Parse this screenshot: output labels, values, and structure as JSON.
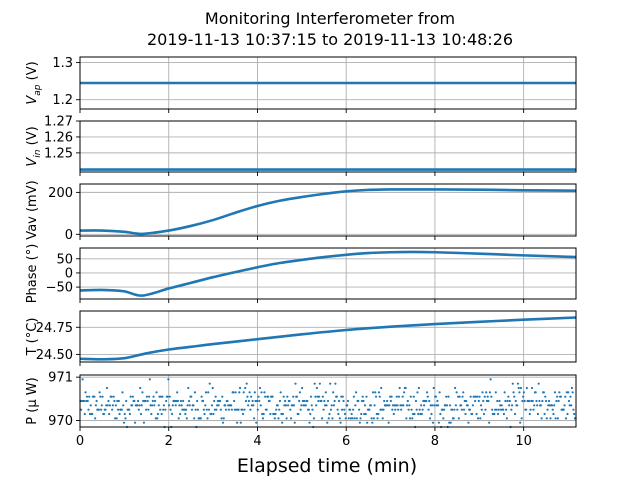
{
  "title_line1": "Monitoring Interferometer from",
  "title_line2": "2019-11-13 10:37:15 to 2019-11-13 10:48:26",
  "xlabel": "Elapsed time (min)",
  "colors": {
    "series": "#1f77b4",
    "grid": "#b0b0b0"
  },
  "chart_data": [
    {
      "type": "line",
      "ylabel": "V_ap (V)",
      "ylabel_main": "V",
      "ylabel_sub": "ap",
      "ylabel_unit": " (V)",
      "ylim": [
        1.175,
        1.315
      ],
      "yticks": [
        1.2,
        1.3
      ],
      "ytick_labels": [
        "1.2",
        "1.3"
      ],
      "xlim": [
        0,
        11.18
      ],
      "xticks": [
        0,
        2,
        4,
        6,
        8,
        10
      ],
      "grid": true,
      "x": [
        0,
        11.18
      ],
      "y": [
        1.245,
        1.245
      ]
    },
    {
      "type": "line",
      "ylabel": "V_in (V)",
      "ylabel_main": "V",
      "ylabel_sub": "in",
      "ylabel_unit": " (V)",
      "ylim": [
        1.238,
        1.27
      ],
      "yticks": [
        1.25,
        1.26,
        1.27
      ],
      "ytick_labels": [
        "1.25",
        "1.26",
        "1.27"
      ],
      "xlim": [
        0,
        11.18
      ],
      "xticks": [
        0,
        2,
        4,
        6,
        8,
        10
      ],
      "grid": true,
      "x": [
        0,
        11.18
      ],
      "y": [
        1.2395,
        1.2395
      ]
    },
    {
      "type": "line",
      "ylabel": "Vav (mV)",
      "ylim": [
        -8,
        240
      ],
      "yticks": [
        0,
        200
      ],
      "ytick_labels": [
        "0",
        "200"
      ],
      "xlim": [
        0,
        11.18
      ],
      "xticks": [
        0,
        2,
        4,
        6,
        8,
        10
      ],
      "grid": true,
      "x": [
        0,
        0.5,
        1.0,
        1.4,
        2.0,
        2.5,
        3.0,
        3.5,
        4.0,
        4.5,
        5.0,
        5.5,
        6.0,
        6.5,
        7.0,
        8.0,
        9.0,
        10.0,
        11.18
      ],
      "y": [
        18,
        18,
        12,
        2,
        18,
        40,
        68,
        103,
        135,
        160,
        178,
        193,
        205,
        212,
        214,
        214,
        213,
        210,
        208
      ]
    },
    {
      "type": "line",
      "ylabel": "Phase (°)",
      "ylim": [
        -92,
        88
      ],
      "yticks": [
        -50,
        0,
        50
      ],
      "ytick_labels": [
        "−50",
        "0",
        "50"
      ],
      "xlim": [
        0,
        11.18
      ],
      "xticks": [
        0,
        2,
        4,
        6,
        8,
        10
      ],
      "grid": true,
      "x": [
        0,
        0.5,
        1.0,
        1.4,
        2.0,
        2.5,
        3.0,
        3.5,
        4.0,
        4.5,
        5.0,
        5.5,
        6.0,
        6.5,
        7.0,
        7.5,
        8.0,
        9.0,
        10.0,
        11.18
      ],
      "y": [
        -62,
        -60,
        -65,
        -80,
        -55,
        -35,
        -15,
        3,
        20,
        35,
        46,
        56,
        64,
        70,
        73,
        74,
        73,
        68,
        62,
        56
      ]
    },
    {
      "type": "line",
      "ylabel": "T (°C)",
      "ylim": [
        24.43,
        24.9
      ],
      "yticks": [
        24.5,
        24.75
      ],
      "ytick_labels": [
        "24.50",
        "24.75"
      ],
      "xlim": [
        0,
        11.18
      ],
      "xticks": [
        0,
        2,
        4,
        6,
        8,
        10
      ],
      "grid": true,
      "x": [
        0,
        0.5,
        1.0,
        1.5,
        2.0,
        2.5,
        3.0,
        4.0,
        5.0,
        6.0,
        7.0,
        8.0,
        9.0,
        10.0,
        11.18
      ],
      "y": [
        24.46,
        24.455,
        24.465,
        24.51,
        24.545,
        24.57,
        24.595,
        24.64,
        24.685,
        24.725,
        24.755,
        24.78,
        24.8,
        24.82,
        24.84
      ]
    },
    {
      "type": "scatter",
      "ylabel": "P (μ W)",
      "ylim": [
        969.85,
        971.05
      ],
      "yticks": [
        970,
        971
      ],
      "ytick_labels": [
        "970",
        "971"
      ],
      "xlim": [
        0,
        11.18
      ],
      "xticks": [
        0,
        2,
        4,
        6,
        8,
        10
      ],
      "grid": true,
      "levels": [
        969.85,
        969.95,
        970.05,
        970.15,
        970.25,
        970.35,
        970.45,
        970.55,
        970.65,
        970.75,
        970.85,
        970.95
      ],
      "points_per_min": 60,
      "note_shape": "quantized noise around 970.4"
    }
  ],
  "xtick_labels": [
    "0",
    "2",
    "4",
    "6",
    "8",
    "10"
  ]
}
